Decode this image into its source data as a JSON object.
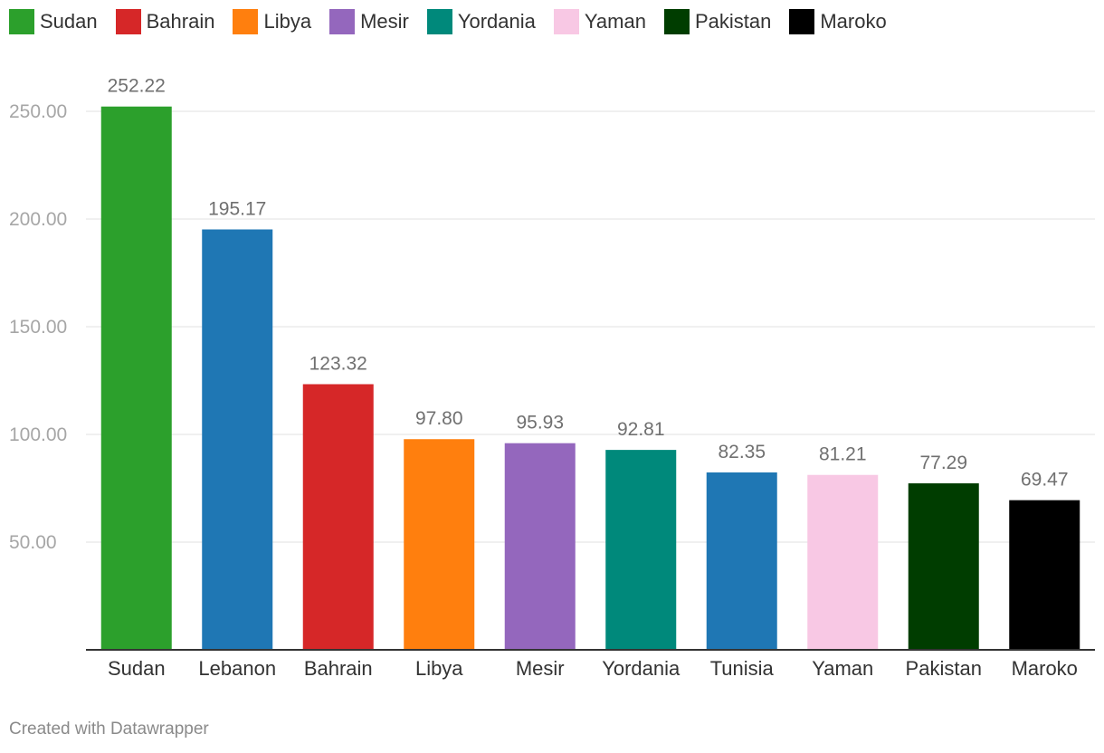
{
  "legend": [
    {
      "label": "Sudan",
      "color": "#2ca02c"
    },
    {
      "label": "Bahrain",
      "color": "#d62728"
    },
    {
      "label": "Libya",
      "color": "#ff7f0e"
    },
    {
      "label": "Mesir",
      "color": "#9467bd"
    },
    {
      "label": "Yordania",
      "color": "#00897b"
    },
    {
      "label": "Yaman",
      "color": "#f8c8e4"
    },
    {
      "label": "Pakistan",
      "color": "#003d00"
    },
    {
      "label": "Maroko",
      "color": "#000000"
    }
  ],
  "chart_data": {
    "type": "bar",
    "title": "",
    "xlabel": "",
    "ylabel": "",
    "ylim": [
      0,
      262
    ],
    "yticks": [
      "50.00",
      "100.00",
      "150.00",
      "200.00",
      "250.00"
    ],
    "ytick_values": [
      50,
      100,
      150,
      200,
      250
    ],
    "categories": [
      "Sudan",
      "Lebanon",
      "Bahrain",
      "Libya",
      "Mesir",
      "Yordania",
      "Tunisia",
      "Yaman",
      "Pakistan",
      "Maroko"
    ],
    "values": [
      252.22,
      195.17,
      123.32,
      97.8,
      95.93,
      92.81,
      82.35,
      81.21,
      77.29,
      69.47
    ],
    "value_labels": [
      "252.22",
      "195.17",
      "123.32",
      "97.80",
      "95.93",
      "92.81",
      "82.35",
      "81.21",
      "77.29",
      "69.47"
    ],
    "colors": [
      "#2ca02c",
      "#1f77b4",
      "#d62728",
      "#ff7f0e",
      "#9467bd",
      "#00897b",
      "#1f77b4",
      "#f8c8e4",
      "#003d00",
      "#000000"
    ]
  },
  "footer": {
    "credit": "Created with Datawrapper"
  }
}
